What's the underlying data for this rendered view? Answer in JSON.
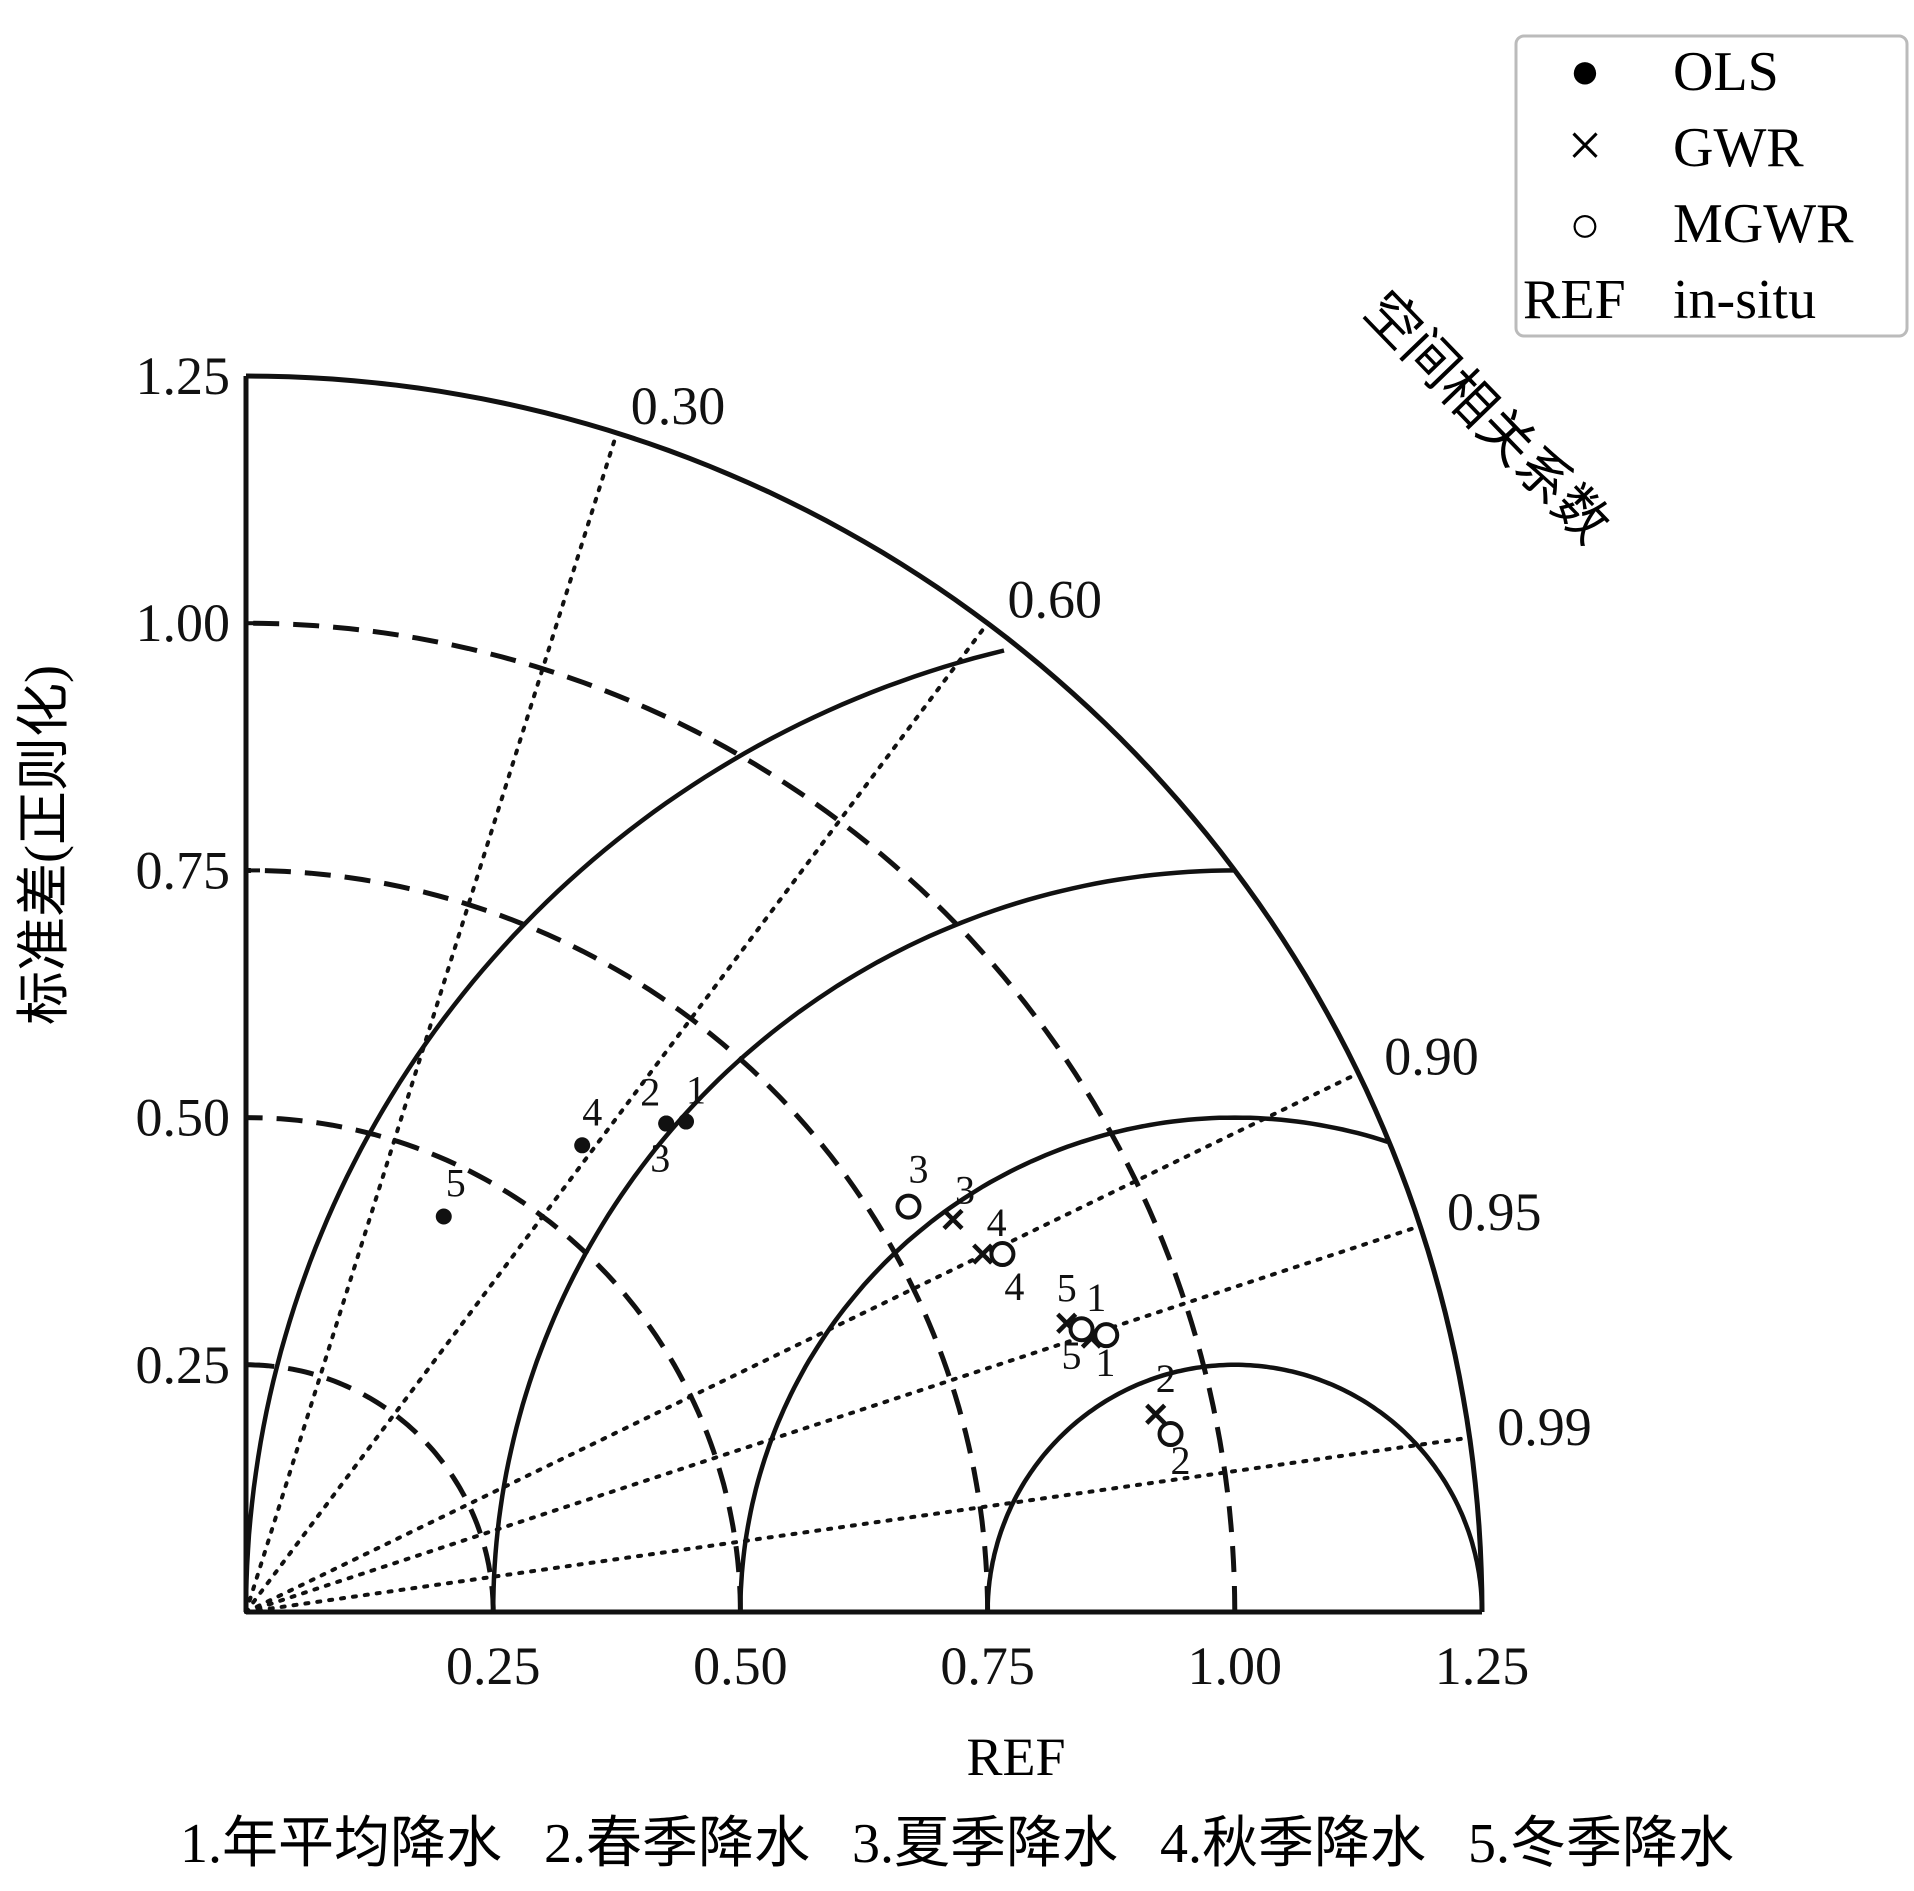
{
  "chart_data": {
    "type": "scatter",
    "subtype": "taylor-diagram",
    "xlabel": "REF",
    "ylabel": "标准差(正则化)",
    "corr_label": "空间相关系数",
    "xlim": [
      0,
      1.25
    ],
    "ylim": [
      0,
      1.25
    ],
    "ticks": [
      "0.25",
      "0.50",
      "0.75",
      "1.00",
      "1.25"
    ],
    "corr_ticks": [
      "0.30",
      "0.60",
      "0.90",
      "0.95",
      "0.99"
    ],
    "legend": {
      "position": "top-right",
      "entries": [
        {
          "symbol": "●",
          "label": "OLS"
        },
        {
          "symbol": "×",
          "label": "GWR"
        },
        {
          "symbol": "○",
          "label": "MGWR"
        },
        {
          "symbol": "REF",
          "label": "in-situ"
        }
      ]
    },
    "series": [
      {
        "name": "OLS",
        "marker": "filled-circle",
        "points": [
          {
            "label": "1",
            "x": 0.445,
            "y": 0.496
          },
          {
            "label": "2",
            "x": 0.425,
            "y": 0.494
          },
          {
            "label": "3",
            "x": 0.425,
            "y": 0.494
          },
          {
            "label": "4",
            "x": 0.34,
            "y": 0.472
          },
          {
            "label": "5",
            "x": 0.2,
            "y": 0.4
          }
        ]
      },
      {
        "name": "GWR",
        "marker": "cross",
        "points": [
          {
            "label": "1",
            "x": 0.855,
            "y": 0.277
          },
          {
            "label": "2",
            "x": 0.92,
            "y": 0.2
          },
          {
            "label": "3",
            "x": 0.715,
            "y": 0.397
          },
          {
            "label": "4",
            "x": 0.745,
            "y": 0.362
          },
          {
            "label": "5",
            "x": 0.83,
            "y": 0.292
          }
        ]
      },
      {
        "name": "MGWR",
        "marker": "open-circle",
        "points": [
          {
            "label": "1",
            "x": 0.87,
            "y": 0.28
          },
          {
            "label": "2",
            "x": 0.935,
            "y": 0.18
          },
          {
            "label": "3",
            "x": 0.67,
            "y": 0.41
          },
          {
            "label": "4",
            "x": 0.765,
            "y": 0.362
          },
          {
            "label": "5",
            "x": 0.845,
            "y": 0.286
          }
        ]
      }
    ],
    "grid": true
  },
  "footnote": "1.年平均降水   2.春季降水   3.夏季降水   4.秋季降水   5.冬季降水"
}
